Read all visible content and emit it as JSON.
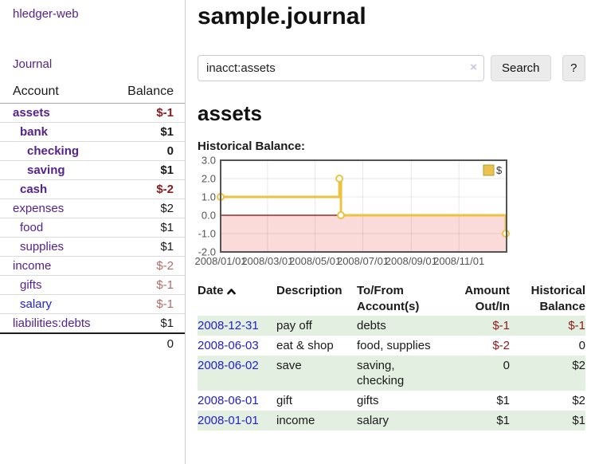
{
  "app": {
    "brand": "hledger-web"
  },
  "nav": {
    "journal": "Journal"
  },
  "accounts_panel": {
    "headers": {
      "account": "Account",
      "balance": "Balance"
    },
    "rows": [
      {
        "name": "assets",
        "balance": "$-1",
        "depth": 0,
        "bold": true,
        "link_color": "purple",
        "balance_class": "neg-strong"
      },
      {
        "name": "bank",
        "balance": "$1",
        "depth": 1,
        "bold": true,
        "link_color": "purple",
        "balance_class": ""
      },
      {
        "name": "checking",
        "balance": "0",
        "depth": 2,
        "bold": true,
        "link_color": "purple",
        "balance_class": ""
      },
      {
        "name": "saving",
        "balance": "$1",
        "depth": 2,
        "bold": true,
        "link_color": "purple",
        "balance_class": ""
      },
      {
        "name": "cash",
        "balance": "$-2",
        "depth": 1,
        "bold": true,
        "link_color": "purple",
        "balance_class": "neg-strong"
      },
      {
        "name": "expenses",
        "balance": "$2",
        "depth": 0,
        "bold": false,
        "link_color": "purple",
        "balance_class": ""
      },
      {
        "name": "food",
        "balance": "$1",
        "depth": 1,
        "bold": false,
        "link_color": "purple",
        "balance_class": ""
      },
      {
        "name": "supplies",
        "balance": "$1",
        "depth": 1,
        "bold": false,
        "link_color": "purple",
        "balance_class": ""
      },
      {
        "name": "income",
        "balance": "$-2",
        "depth": 0,
        "bold": false,
        "link_color": "purple",
        "balance_class": "neg-soft"
      },
      {
        "name": "gifts",
        "balance": "$-1",
        "depth": 1,
        "bold": false,
        "link_color": "purple",
        "balance_class": "neg-soft"
      },
      {
        "name": "salary",
        "balance": "$-1",
        "depth": 1,
        "bold": false,
        "link_color": "blue",
        "balance_class": "neg-soft"
      },
      {
        "name": "liabilities:debts",
        "balance": "$1",
        "depth": 0,
        "bold": false,
        "link_color": "purple",
        "balance_class": ""
      }
    ],
    "total": "0"
  },
  "main": {
    "title": "sample.journal",
    "search": {
      "value": "inacct:assets",
      "clear": "×",
      "button": "Search",
      "help": "?"
    },
    "account_heading": "assets",
    "chart_title": "Historical Balance:"
  },
  "chart_data": {
    "type": "line",
    "title": "Historical Balance:",
    "step": true,
    "legend": [
      {
        "label": "$",
        "color": "#e9c34d"
      }
    ],
    "legend_position": "top-right",
    "grid": true,
    "x_axis": {
      "domain_days": [
        0,
        366
      ],
      "ticks": [
        {
          "day": 0,
          "label": "2008/01/01"
        },
        {
          "day": 60,
          "label": "2008/03/01"
        },
        {
          "day": 121,
          "label": "2008/05/01"
        },
        {
          "day": 182,
          "label": "2008/07/01"
        },
        {
          "day": 244,
          "label": "2008/09/01"
        },
        {
          "day": 305,
          "label": "2008/11/01"
        }
      ]
    },
    "y_axis": {
      "range": [
        -2,
        3
      ],
      "ticks": [
        {
          "v": 3,
          "label": "3.0"
        },
        {
          "v": 2,
          "label": "2.0"
        },
        {
          "v": 1,
          "label": "1.0"
        },
        {
          "v": 0,
          "label": "0.0"
        },
        {
          "v": -1,
          "label": "-1.0"
        },
        {
          "v": -2,
          "label": "-2.0"
        }
      ]
    },
    "series": [
      {
        "name": "$",
        "color": "#edc240",
        "points": [
          {
            "date": "2008-01-01",
            "day": 0,
            "value": 1
          },
          {
            "date": "2008-06-01",
            "day": 152,
            "value": 2
          },
          {
            "date": "2008-06-03",
            "day": 154,
            "value": 0
          },
          {
            "date": "2008-12-31",
            "day": 365,
            "value": -1
          }
        ]
      }
    ],
    "negative_region": {
      "below": 0,
      "color": "#fbdada"
    },
    "zero_line_color": "#8b0000",
    "axis_label_color": "#545454",
    "border_color": "#545454"
  },
  "register": {
    "headers": {
      "date": "Date",
      "description": "Description",
      "tofrom": [
        "To/From",
        "Account(s)"
      ],
      "amount": [
        "Amount",
        "Out/In"
      ],
      "balance": [
        "Historical",
        "Balance"
      ]
    },
    "rows": [
      {
        "date": "2008-12-31",
        "description": "pay off",
        "tofrom": "debts",
        "amount": "$-1",
        "amount_negative": true,
        "balance": "$-1",
        "balance_negative": true,
        "highlight": true
      },
      {
        "date": "2008-06-03",
        "description": "eat & shop",
        "tofrom": "food, supplies",
        "amount": "$-2",
        "amount_negative": true,
        "balance": "0",
        "balance_negative": false,
        "highlight": false
      },
      {
        "date": "2008-06-02",
        "description": "save",
        "tofrom": "saving,\nchecking",
        "amount": "0",
        "amount_negative": false,
        "balance": "$2",
        "balance_negative": false,
        "highlight": true
      },
      {
        "date": "2008-06-01",
        "description": "gift",
        "tofrom": "gifts",
        "amount": "$1",
        "amount_negative": false,
        "balance": "$2",
        "balance_negative": false,
        "highlight": false
      },
      {
        "date": "2008-01-01",
        "description": "income",
        "tofrom": "salary",
        "amount": "$1",
        "amount_negative": false,
        "balance": "$1",
        "balance_negative": false,
        "highlight": true
      }
    ]
  },
  "colors": {
    "link_purple": "#55228b",
    "link_blue": "#2222cc",
    "negative_strong": "#8b1a1a",
    "negative_soft": "#b36a6a",
    "row_highlight_green": "#e3efe0",
    "chart_line": "#edc240",
    "chart_negative_fill": "#fbdada",
    "chart_zero_line": "#8b0000"
  }
}
